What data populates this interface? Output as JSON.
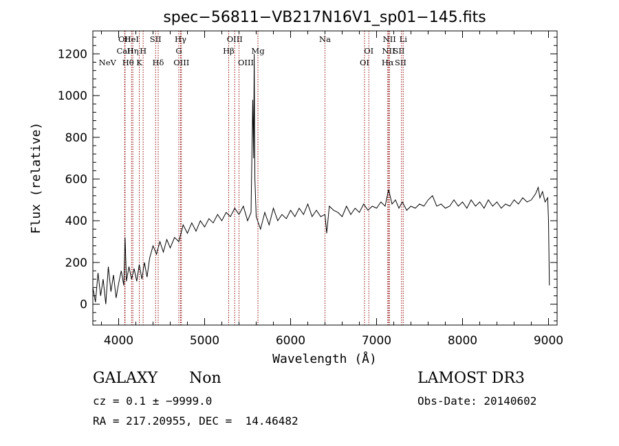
{
  "chart_data": {
    "type": "line",
    "title": "spec−56811−VB217N16V1_sp01−145.fits",
    "xlabel": "Wavelength (Å)",
    "ylabel": "Flux (relative)",
    "xlim": [
      3700,
      9100
    ],
    "ylim": [
      -100,
      1310
    ],
    "x_ticks": [
      4000,
      5000,
      6000,
      7000,
      8000,
      9000
    ],
    "y_ticks": [
      0,
      200,
      400,
      600,
      800,
      1000,
      1200
    ],
    "series": [
      {
        "name": "flux",
        "x": [
          3700,
          3730,
          3760,
          3790,
          3820,
          3850,
          3880,
          3910,
          3940,
          3970,
          4000,
          4030,
          4060,
          4075,
          4090,
          4120,
          4150,
          4180,
          4210,
          4240,
          4270,
          4300,
          4330,
          4360,
          4400,
          4440,
          4480,
          4520,
          4560,
          4600,
          4650,
          4700,
          4750,
          4800,
          4850,
          4900,
          4950,
          5000,
          5050,
          5100,
          5150,
          5200,
          5250,
          5300,
          5350,
          5400,
          5450,
          5500,
          5540,
          5560,
          5570,
          5577,
          5585,
          5600,
          5650,
          5700,
          5750,
          5800,
          5850,
          5900,
          5950,
          6000,
          6050,
          6100,
          6150,
          6200,
          6250,
          6300,
          6350,
          6400,
          6420,
          6450,
          6500,
          6550,
          6600,
          6650,
          6700,
          6750,
          6800,
          6850,
          6900,
          6950,
          7000,
          7050,
          7100,
          7140,
          7180,
          7220,
          7260,
          7300,
          7350,
          7400,
          7450,
          7500,
          7550,
          7600,
          7650,
          7700,
          7750,
          7800,
          7850,
          7900,
          7950,
          8000,
          8050,
          8100,
          8150,
          8200,
          8250,
          8300,
          8350,
          8400,
          8450,
          8500,
          8550,
          8600,
          8650,
          8700,
          8750,
          8800,
          8850,
          8880,
          8900,
          8930,
          8960,
          8990,
          9000,
          9010
        ],
        "values": [
          80,
          10,
          150,
          40,
          120,
          0,
          180,
          60,
          140,
          30,
          100,
          160,
          90,
          320,
          110,
          180,
          120,
          170,
          110,
          190,
          120,
          200,
          130,
          220,
          280,
          240,
          300,
          250,
          310,
          270,
          320,
          300,
          380,
          340,
          390,
          350,
          400,
          370,
          410,
          390,
          430,
          400,
          440,
          420,
          460,
          430,
          470,
          400,
          440,
          980,
          700,
          1200,
          600,
          420,
          360,
          440,
          380,
          460,
          400,
          430,
          410,
          450,
          420,
          460,
          430,
          480,
          420,
          450,
          420,
          430,
          340,
          470,
          450,
          440,
          420,
          470,
          430,
          460,
          440,
          480,
          450,
          470,
          460,
          490,
          470,
          550,
          480,
          500,
          460,
          490,
          450,
          470,
          460,
          480,
          470,
          500,
          520,
          470,
          480,
          460,
          470,
          500,
          470,
          490,
          460,
          500,
          470,
          490,
          460,
          500,
          470,
          490,
          460,
          480,
          470,
          500,
          480,
          510,
          490,
          500,
          530,
          560,
          510,
          540,
          490,
          510,
          400,
          90
        ]
      }
    ],
    "emission_lines": [
      {
        "wavelength": 3870,
        "label": "NeV",
        "tier": 2
      },
      {
        "wavelength": 4070,
        "label": "OII",
        "tier": 0
      },
      {
        "wavelength": 4075,
        "label": "CaII",
        "tier": 1
      },
      {
        "wavelength": 4110,
        "label": "Hθ",
        "tier": 2
      },
      {
        "wavelength": 4150,
        "label": "HeI",
        "tier": 0
      },
      {
        "wavelength": 4165,
        "label": "Hη",
        "tier": 1
      },
      {
        "wavelength": 4240,
        "label": "K",
        "tier": 2
      },
      {
        "wavelength": 4285,
        "label": "H",
        "tier": 1
      },
      {
        "wavelength": 4430,
        "label": "SII",
        "tier": 0
      },
      {
        "wavelength": 4460,
        "label": "Hδ",
        "tier": 2
      },
      {
        "wavelength": 4720,
        "label": "Hγ",
        "tier": 0
      },
      {
        "wavelength": 4700,
        "label": "G",
        "tier": 1
      },
      {
        "wavelength": 4730,
        "label": "OIII",
        "tier": 2
      },
      {
        "wavelength": 5350,
        "label": "OIII",
        "tier": 0
      },
      {
        "wavelength": 5280,
        "label": "Hβ",
        "tier": 1
      },
      {
        "wavelength": 5480,
        "label": "OIII",
        "tier": 2
      },
      {
        "wavelength": 5620,
        "label": "Mg",
        "tier": 1
      },
      {
        "wavelength": 6400,
        "label": "Na",
        "tier": 0
      },
      {
        "wavelength": 6910,
        "label": "OI",
        "tier": 1
      },
      {
        "wavelength": 6860,
        "label": "OI",
        "tier": 2
      },
      {
        "wavelength": 7150,
        "label": "NII",
        "tier": 0
      },
      {
        "wavelength": 7140,
        "label": "NII",
        "tier": 1
      },
      {
        "wavelength": 7130,
        "label": "Hα",
        "tier": 2
      },
      {
        "wavelength": 7310,
        "label": "Li",
        "tier": 0
      },
      {
        "wavelength": 7260,
        "label": "SII",
        "tier": 1
      },
      {
        "wavelength": 7280,
        "label": "SII",
        "tier": 2
      }
    ],
    "line_marker_wavelengths": [
      4070,
      4075,
      4150,
      4165,
      4240,
      4285,
      4430,
      4460,
      4700,
      4720,
      4730,
      5280,
      5350,
      5400,
      5620,
      6400,
      6860,
      6910,
      7130,
      7140,
      7150,
      7290,
      7310
    ]
  },
  "info": {
    "object_class": "GALAXY",
    "subclass": "Non",
    "redshift": "cz = 0.1 ± −9999.0",
    "coords": "RA = 217.20955, DEC =  14.46482",
    "survey": "LAMOST DR3",
    "obs_date": "Obs-Date: 20140602"
  },
  "colors": {
    "spectrum": "#000000",
    "line_markers": "#8b0000"
  }
}
